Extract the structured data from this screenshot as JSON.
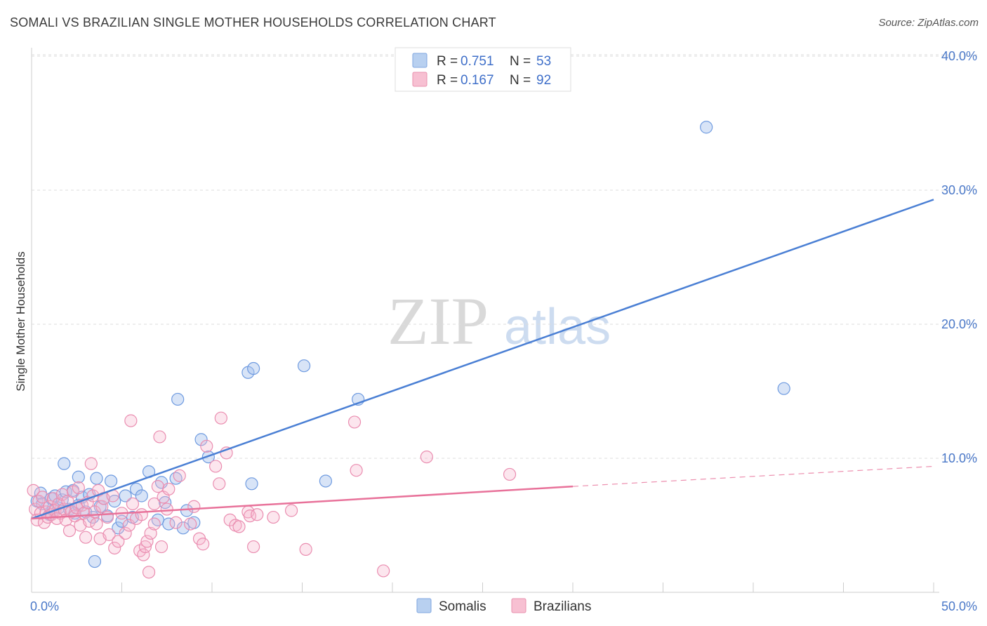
{
  "title": "SOMALI VS BRAZILIAN SINGLE MOTHER HOUSEHOLDS CORRELATION CHART",
  "source": "Source: ZipAtlas.com",
  "watermark": {
    "part1": "ZIP",
    "part2": "atlas"
  },
  "legend_top": [
    {
      "r_label": "R = ",
      "r_value": "0.751",
      "n_label": "N = ",
      "n_value": "53"
    },
    {
      "r_label": "R = ",
      "r_value": "0.167",
      "n_label": "N = ",
      "n_value": "92"
    }
  ],
  "chart_data": {
    "type": "scatter",
    "title": "SOMALI VS BRAZILIAN SINGLE MOTHER HOUSEHOLDS CORRELATION CHART",
    "xlabel": "",
    "ylabel": "Single Mother Households",
    "xlim": [
      0,
      50
    ],
    "ylim": [
      0,
      41
    ],
    "x_tick_labels": [
      "0.0%",
      "50.0%"
    ],
    "y_ticks": [
      10,
      20,
      30,
      40
    ],
    "y_tick_labels": [
      "10.0%",
      "20.0%",
      "30.0%",
      "40.0%"
    ],
    "grid": "horizontal dashed",
    "legend_position": "top-center",
    "colors": {
      "Somalis": "#4a7fd4",
      "Brazilians": "#e8729a"
    },
    "series": [
      {
        "name": "Somalis",
        "r": 0.751,
        "n": 53,
        "trend": {
          "x_start": 0,
          "y_start": 5.5,
          "x_end": 50,
          "y_end": 29.3
        },
        "points": [
          [
            0.3,
            6.8
          ],
          [
            0.5,
            7.4
          ],
          [
            0.6,
            6.6
          ],
          [
            1.0,
            5.8
          ],
          [
            1.1,
            7.0
          ],
          [
            1.2,
            6.1
          ],
          [
            1.3,
            7.2
          ],
          [
            1.5,
            6.3
          ],
          [
            1.7,
            6.9
          ],
          [
            1.9,
            7.5
          ],
          [
            2.1,
            6.2
          ],
          [
            2.3,
            7.6
          ],
          [
            2.4,
            5.9
          ],
          [
            2.6,
            6.5
          ],
          [
            2.8,
            7.1
          ],
          [
            3.0,
            6.0
          ],
          [
            3.2,
            7.3
          ],
          [
            3.4,
            5.6
          ],
          [
            3.6,
            8.5
          ],
          [
            3.8,
            6.4
          ],
          [
            4.0,
            7.0
          ],
          [
            4.2,
            5.7
          ],
          [
            4.4,
            8.3
          ],
          [
            4.6,
            6.8
          ],
          [
            4.8,
            4.8
          ],
          [
            5.0,
            5.3
          ],
          [
            5.2,
            7.2
          ],
          [
            5.6,
            5.6
          ],
          [
            5.8,
            7.7
          ],
          [
            6.1,
            7.2
          ],
          [
            6.5,
            9.0
          ],
          [
            7.0,
            5.4
          ],
          [
            7.2,
            8.2
          ],
          [
            7.4,
            6.7
          ],
          [
            7.6,
            5.1
          ],
          [
            8.0,
            8.5
          ],
          [
            8.4,
            4.8
          ],
          [
            8.6,
            6.1
          ],
          [
            9.0,
            5.2
          ],
          [
            9.4,
            11.4
          ],
          [
            9.8,
            10.1
          ],
          [
            12.2,
            8.1
          ],
          [
            12.0,
            16.4
          ],
          [
            12.3,
            16.7
          ],
          [
            15.1,
            16.9
          ],
          [
            16.3,
            8.3
          ],
          [
            18.1,
            14.4
          ],
          [
            8.1,
            14.4
          ],
          [
            3.5,
            2.3
          ],
          [
            37.4,
            34.7
          ],
          [
            41.7,
            15.2
          ],
          [
            1.8,
            9.6
          ],
          [
            2.6,
            8.6
          ]
        ]
      },
      {
        "name": "Brazilians",
        "r": 0.167,
        "n": 92,
        "trend": {
          "x_start": 0,
          "y_start": 5.5,
          "x_end": 30,
          "y_end": 7.9,
          "dashed_to_x": 50,
          "dashed_to_y": 9.4
        },
        "points": [
          [
            0.1,
            7.6
          ],
          [
            0.2,
            6.2
          ],
          [
            0.3,
            5.4
          ],
          [
            0.4,
            6.8
          ],
          [
            0.5,
            5.9
          ],
          [
            0.6,
            7.1
          ],
          [
            0.7,
            5.2
          ],
          [
            0.8,
            6.0
          ],
          [
            0.9,
            5.6
          ],
          [
            1.0,
            6.4
          ],
          [
            1.1,
            5.8
          ],
          [
            1.2,
            7.0
          ],
          [
            1.3,
            6.1
          ],
          [
            1.4,
            5.5
          ],
          [
            1.5,
            6.6
          ],
          [
            1.6,
            5.9
          ],
          [
            1.7,
            7.3
          ],
          [
            1.8,
            6.2
          ],
          [
            1.9,
            5.4
          ],
          [
            2.0,
            6.8
          ],
          [
            2.1,
            4.6
          ],
          [
            2.2,
            6.0
          ],
          [
            2.3,
            7.5
          ],
          [
            2.4,
            5.7
          ],
          [
            2.5,
            6.3
          ],
          [
            2.6,
            7.8
          ],
          [
            2.7,
            5.0
          ],
          [
            2.8,
            6.5
          ],
          [
            2.9,
            5.9
          ],
          [
            3.0,
            4.1
          ],
          [
            3.1,
            6.7
          ],
          [
            3.2,
            5.3
          ],
          [
            3.3,
            9.6
          ],
          [
            3.4,
            7.2
          ],
          [
            3.5,
            6.0
          ],
          [
            3.6,
            5.1
          ],
          [
            3.7,
            7.6
          ],
          [
            3.8,
            4.0
          ],
          [
            3.9,
            6.4
          ],
          [
            4.0,
            7.0
          ],
          [
            4.2,
            5.6
          ],
          [
            4.3,
            4.3
          ],
          [
            4.5,
            7.2
          ],
          [
            4.6,
            3.3
          ],
          [
            4.8,
            3.8
          ],
          [
            5.0,
            5.9
          ],
          [
            5.2,
            4.4
          ],
          [
            5.4,
            5.0
          ],
          [
            5.5,
            12.8
          ],
          [
            5.6,
            6.6
          ],
          [
            5.8,
            5.5
          ],
          [
            6.0,
            3.1
          ],
          [
            6.1,
            5.8
          ],
          [
            6.2,
            2.8
          ],
          [
            6.3,
            3.4
          ],
          [
            6.4,
            3.8
          ],
          [
            6.5,
            1.5
          ],
          [
            6.6,
            4.4
          ],
          [
            6.8,
            5.1
          ],
          [
            7.0,
            7.9
          ],
          [
            7.1,
            11.6
          ],
          [
            7.2,
            3.4
          ],
          [
            7.3,
            7.1
          ],
          [
            7.5,
            6.2
          ],
          [
            7.6,
            7.7
          ],
          [
            8.0,
            5.2
          ],
          [
            8.2,
            8.7
          ],
          [
            8.8,
            5.1
          ],
          [
            9.0,
            6.4
          ],
          [
            9.3,
            4.0
          ],
          [
            9.5,
            3.6
          ],
          [
            9.7,
            10.9
          ],
          [
            10.2,
            9.4
          ],
          [
            10.4,
            8.1
          ],
          [
            10.5,
            13.0
          ],
          [
            11.0,
            5.4
          ],
          [
            11.3,
            5.0
          ],
          [
            11.5,
            4.9
          ],
          [
            12.0,
            6.0
          ],
          [
            12.1,
            5.7
          ],
          [
            12.3,
            3.4
          ],
          [
            12.5,
            5.8
          ],
          [
            13.4,
            5.6
          ],
          [
            14.4,
            6.1
          ],
          [
            15.2,
            3.2
          ],
          [
            17.9,
            12.7
          ],
          [
            18.0,
            9.1
          ],
          [
            19.5,
            1.6
          ],
          [
            21.9,
            10.1
          ],
          [
            26.5,
            8.8
          ],
          [
            10.8,
            10.4
          ],
          [
            6.8,
            6.6
          ]
        ]
      }
    ]
  }
}
